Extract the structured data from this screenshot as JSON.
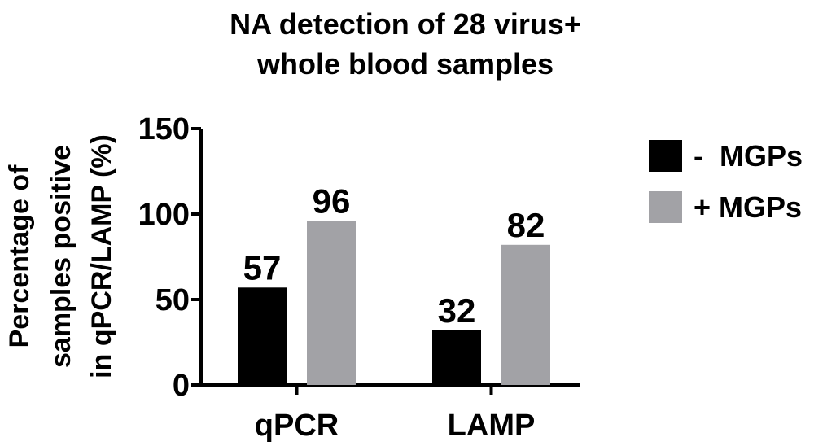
{
  "chart_data": {
    "type": "bar",
    "title": [
      "NA detection of 28 virus+",
      "whole blood samples"
    ],
    "ylabel": [
      "Percentage of",
      "samples positive",
      "in qPCR/LAMP (%)"
    ],
    "xlabel": "",
    "categories": [
      "qPCR",
      "LAMP"
    ],
    "series": [
      {
        "name": "-  MGPs",
        "values": [
          57,
          32
        ],
        "color": "#000000"
      },
      {
        "name": "+ MGPs",
        "values": [
          96,
          82
        ],
        "color": "#a2a2a6"
      }
    ],
    "ylim": [
      0,
      150
    ],
    "yticks": [
      0,
      50,
      100,
      150
    ],
    "data_labels": true,
    "grid": false,
    "legend_position": "right"
  }
}
